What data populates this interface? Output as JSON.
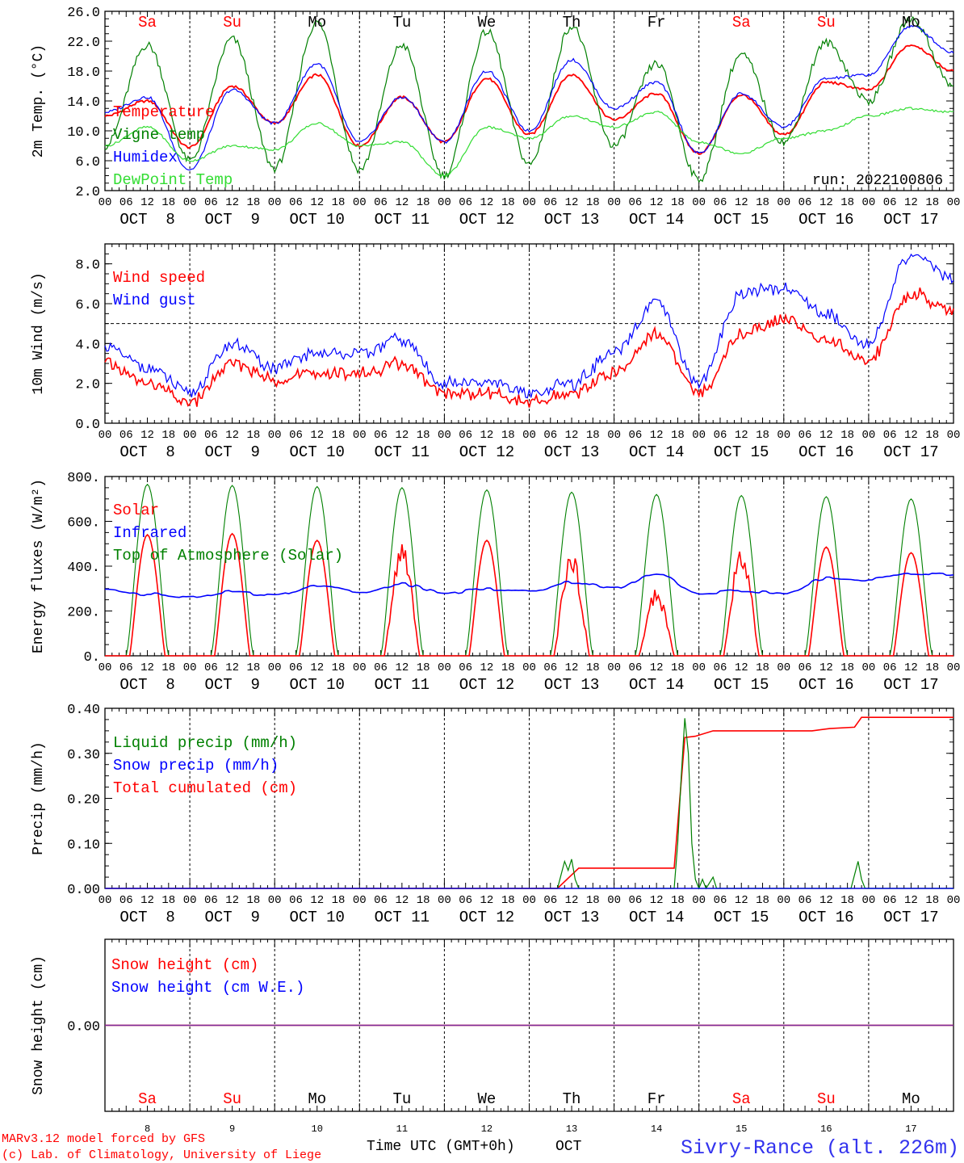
{
  "meta": {
    "run_label": "run: 2022100806",
    "credit_lines": [
      "MARv3.12 model forced by GFS",
      "(c) Lab. of Climatology, University of Liege"
    ],
    "x_title": "Time UTC (GMT+0h)",
    "x_month": "OCT",
    "station": "Sivry-Rance (alt. 226m)"
  },
  "days": [
    {
      "date": "OCT  8",
      "num": "8",
      "dow": "Sa",
      "weekend": true
    },
    {
      "date": "OCT  9",
      "num": "9",
      "dow": "Su",
      "weekend": true
    },
    {
      "date": "OCT 10",
      "num": "10",
      "dow": "Mo",
      "weekend": false
    },
    {
      "date": "OCT 11",
      "num": "11",
      "dow": "Tu",
      "weekend": false
    },
    {
      "date": "OCT 12",
      "num": "12",
      "dow": "We",
      "weekend": false
    },
    {
      "date": "OCT 13",
      "num": "13",
      "dow": "Th",
      "weekend": false
    },
    {
      "date": "OCT 14",
      "num": "14",
      "dow": "Fr",
      "weekend": false
    },
    {
      "date": "OCT 15",
      "num": "15",
      "dow": "Sa",
      "weekend": true
    },
    {
      "date": "OCT 16",
      "num": "16",
      "dow": "Su",
      "weekend": true
    },
    {
      "date": "OCT 17",
      "num": "17",
      "dow": "Mo",
      "weekend": false
    }
  ],
  "hour_labels": [
    "00",
    "06",
    "12",
    "18"
  ],
  "colors": {
    "red": "#ff0000",
    "green": "#008000",
    "blue": "#0000ff",
    "lime": "#33dd33",
    "weekend": "#ff0000",
    "weekday": "#000000",
    "station": "#3333ee"
  },
  "chart_data": [
    {
      "id": "temp",
      "type": "line",
      "ylabel": "2m Temp. (°C)",
      "ylim": [
        2,
        26
      ],
      "yticks": [
        {
          "v": 2,
          "label": "2.0"
        },
        {
          "v": 6,
          "label": "6.0"
        },
        {
          "v": 10,
          "label": "10.0"
        },
        {
          "v": 14,
          "label": "14.0"
        },
        {
          "v": 18,
          "label": "18.0"
        },
        {
          "v": 22,
          "label": "22.0"
        },
        {
          "v": 26,
          "label": "26.0"
        }
      ],
      "x_hours": [
        0,
        12,
        24,
        36,
        48,
        60,
        72,
        84,
        96,
        108,
        120,
        132,
        144,
        156,
        168,
        180,
        192,
        204,
        216,
        228,
        240
      ],
      "series": [
        {
          "name": "Temperature",
          "color": "red",
          "values": [
            12.0,
            14.0,
            7.8,
            16.0,
            11.0,
            17.5,
            8.0,
            14.5,
            8.5,
            17.0,
            9.5,
            17.5,
            11.5,
            15.0,
            7.0,
            14.8,
            9.5,
            16.5,
            15.5,
            21.5,
            18.0
          ]
        },
        {
          "name": "Vigne temp",
          "color": "green",
          "values": [
            8.0,
            21.5,
            6.0,
            22.3,
            5.0,
            24.5,
            4.8,
            21.5,
            4.0,
            23.3,
            5.5,
            24.0,
            8.0,
            19.0,
            3.5,
            20.2,
            8.5,
            21.8,
            14.0,
            25.0,
            16.0
          ]
        },
        {
          "name": "Humidex",
          "color": "blue",
          "values": [
            12.5,
            14.5,
            4.8,
            15.5,
            11.0,
            19.0,
            8.5,
            14.5,
            8.5,
            18.0,
            10.0,
            19.5,
            13.0,
            16.5,
            7.0,
            15.0,
            10.5,
            17.0,
            17.5,
            24.0,
            20.5
          ]
        },
        {
          "name": "DewPoint Temp",
          "color": "lime",
          "values": [
            8.0,
            10.5,
            6.0,
            8.0,
            7.5,
            11.0,
            8.0,
            8.5,
            4.0,
            10.5,
            9.0,
            12.0,
            10.5,
            12.5,
            8.5,
            7.0,
            9.0,
            10.0,
            12.0,
            13.0,
            12.5
          ]
        }
      ]
    },
    {
      "id": "wind",
      "type": "line",
      "ylabel": "10m Wind (m/s)",
      "ylim": [
        0,
        9
      ],
      "ref_line": 5,
      "yticks": [
        {
          "v": 0,
          "label": "0.0"
        },
        {
          "v": 2,
          "label": "2.0"
        },
        {
          "v": 4,
          "label": "4.0"
        },
        {
          "v": 6,
          "label": "6.0"
        },
        {
          "v": 8,
          "label": "8.0"
        }
      ],
      "x_hours": [
        0,
        12,
        24,
        36,
        48,
        60,
        72,
        84,
        96,
        108,
        120,
        132,
        144,
        156,
        168,
        180,
        192,
        204,
        216,
        228,
        240
      ],
      "series": [
        {
          "name": "Wind speed",
          "color": "red",
          "values": [
            3.0,
            2.0,
            1.0,
            3.0,
            2.2,
            2.5,
            2.5,
            3.0,
            1.5,
            1.5,
            1.0,
            1.5,
            2.5,
            4.5,
            1.5,
            4.5,
            5.2,
            4.2,
            3.2,
            6.5,
            5.6
          ]
        },
        {
          "name": "Wind gust",
          "color": "blue",
          "values": [
            3.8,
            2.8,
            1.5,
            4.0,
            2.8,
            3.5,
            3.5,
            4.2,
            2.0,
            2.0,
            1.5,
            2.0,
            3.5,
            6.0,
            2.0,
            6.5,
            6.8,
            5.5,
            4.0,
            8.5,
            7.3
          ]
        }
      ]
    },
    {
      "id": "flux",
      "type": "line",
      "ylabel": "Energy fluxes (W/m²)",
      "ylim": [
        0,
        800
      ],
      "yticks": [
        {
          "v": 0,
          "label": "0."
        },
        {
          "v": 200,
          "label": "200."
        },
        {
          "v": 400,
          "label": "400."
        },
        {
          "v": 600,
          "label": "600."
        },
        {
          "v": 800,
          "label": "800."
        }
      ],
      "solar_peaks": [
        540,
        545,
        515,
        505,
        515,
        470,
        300,
        495,
        485,
        460
      ],
      "toa_peaks": [
        765,
        760,
        755,
        750,
        740,
        730,
        720,
        715,
        710,
        700
      ],
      "x_hours": [
        0,
        12,
        24,
        36,
        48,
        60,
        72,
        84,
        96,
        108,
        120,
        132,
        144,
        156,
        168,
        180,
        192,
        204,
        216,
        228,
        240
      ],
      "series": [
        {
          "name": "Solar",
          "color": "red"
        },
        {
          "name": "Infrared",
          "color": "blue",
          "values": [
            300,
            275,
            260,
            285,
            270,
            315,
            285,
            320,
            280,
            300,
            290,
            330,
            300,
            370,
            280,
            290,
            280,
            345,
            340,
            370,
            360
          ]
        },
        {
          "name": "Top of Atmosphere (Solar)",
          "color": "green"
        }
      ]
    },
    {
      "id": "precip",
      "type": "line",
      "ylabel": "Precip (mm/h)",
      "ylim": [
        0,
        0.4
      ],
      "yticks": [
        {
          "v": 0,
          "label": "0.00"
        },
        {
          "v": 0.1,
          "label": "0.10"
        },
        {
          "v": 0.2,
          "label": "0.20"
        },
        {
          "v": 0.3,
          "label": "0.30"
        },
        {
          "v": 0.4,
          "label": "0.40"
        }
      ],
      "series": [
        {
          "name": "Liquid precip (mm/h)",
          "color": "green",
          "points": [
            [
              0,
              0
            ],
            [
              128,
              0
            ],
            [
              129,
              0.03
            ],
            [
              130,
              0.06
            ],
            [
              131,
              0.04
            ],
            [
              132,
              0.065
            ],
            [
              133,
              0.02
            ],
            [
              134,
              0
            ],
            [
              161,
              0
            ],
            [
              162,
              0.1
            ],
            [
              163,
              0.25
            ],
            [
              164,
              0.378
            ],
            [
              165,
              0.3
            ],
            [
              166,
              0.1
            ],
            [
              167,
              0.02
            ],
            [
              168,
              0
            ],
            [
              169,
              0.02
            ],
            [
              170,
              0
            ],
            [
              172,
              0.025
            ],
            [
              173,
              0
            ],
            [
              211,
              0
            ],
            [
              212,
              0.03
            ],
            [
              213,
              0.06
            ],
            [
              214,
              0.02
            ],
            [
              215,
              0
            ],
            [
              240,
              0
            ]
          ]
        },
        {
          "name": "Snow precip (mm/h)",
          "color": "blue",
          "points": [
            [
              0,
              0
            ],
            [
              240,
              0
            ]
          ]
        },
        {
          "name": "Total cumulated (cm)",
          "color": "red",
          "points": [
            [
              0,
              0
            ],
            [
              128,
              0
            ],
            [
              134,
              0.045
            ],
            [
              158,
              0.045
            ],
            [
              161,
              0.045
            ],
            [
              164,
              0.335
            ],
            [
              167,
              0.338
            ],
            [
              172,
              0.35
            ],
            [
              200,
              0.35
            ],
            [
              205,
              0.355
            ],
            [
              212,
              0.358
            ],
            [
              214,
              0.38
            ],
            [
              240,
              0.38
            ]
          ]
        }
      ]
    },
    {
      "id": "snow",
      "type": "line",
      "ylabel": "Snow height (cm)",
      "ylim": [
        -1,
        1
      ],
      "yticks": [
        {
          "v": 0,
          "label": "0.00"
        }
      ],
      "series": [
        {
          "name": "Snow height (cm)",
          "color": "red",
          "points": [
            [
              0,
              0
            ],
            [
              240,
              0
            ]
          ]
        },
        {
          "name": "Snow height (cm W.E.)",
          "color": "blue",
          "points": [
            [
              0,
              0
            ],
            [
              240,
              0
            ]
          ]
        }
      ]
    }
  ]
}
